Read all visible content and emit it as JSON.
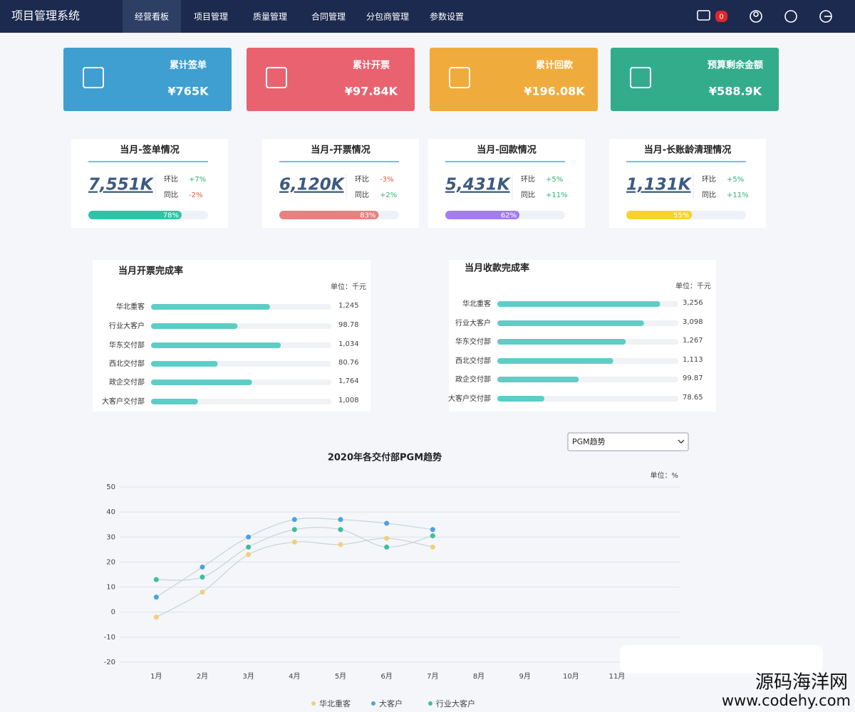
{
  "nav": {
    "title": "项目管理系统",
    "items": [
      "经营看板",
      "项目管理",
      "质量管理",
      "合同管理",
      "分包商管理",
      "参数设置"
    ],
    "badge": "0"
  },
  "kpis": [
    {
      "label": "累计签单",
      "value": "¥765K",
      "color": "#3f9fd0"
    },
    {
      "label": "累计开票",
      "value": "¥97.84K",
      "color": "#e8636f"
    },
    {
      "label": "累计回款",
      "value": "¥196.08K",
      "color": "#efac3c"
    },
    {
      "label": "预算剩余金额",
      "value": "¥588.9K",
      "color": "#33ac8c"
    }
  ],
  "months": [
    {
      "title": "当月-签单情况",
      "value": "7,551K",
      "mom_label": "环比",
      "mom": "+7%",
      "yoy_label": "同比",
      "yoy": "-2%",
      "progress": 78,
      "progress_label": "78%",
      "color": "#2ec4a6"
    },
    {
      "title": "当月-开票情况",
      "value": "6,120K",
      "mom_label": "环比",
      "mom": "-3%",
      "yoy_label": "同比",
      "yoy": "+2%",
      "progress": 83,
      "progress_label": "83%",
      "color": "#ea7f80"
    },
    {
      "title": "当月-回款情况",
      "value": "5,431K",
      "mom_label": "环比",
      "mom": "+5%",
      "yoy_label": "同比",
      "yoy": "+11%",
      "progress": 62,
      "progress_label": "62%",
      "color": "#a27cf0"
    },
    {
      "title": "当月-长账龄清理情况",
      "value": "1,131K",
      "mom_label": "环比",
      "mom": "+5%",
      "yoy_label": "同比",
      "yoy": "+11%",
      "progress": 55,
      "progress_label": "55%",
      "color": "#f9d22a"
    }
  ],
  "chart_data": [
    {
      "type": "bar",
      "orientation": "horizontal",
      "title": "当月开票完成率",
      "unit": "单位：千元",
      "categories": [
        "华北重客",
        "行业大客户",
        "华东交付部",
        "西北交付部",
        "政企交付部",
        "大客户交付部"
      ],
      "values": [
        66,
        48,
        72,
        37,
        56,
        26
      ],
      "amounts": [
        "1,245",
        "98.78",
        "1,034",
        "80.76",
        "1,764",
        "1,008"
      ],
      "xlim": [
        0,
        100
      ],
      "color": "#5ecdc6"
    },
    {
      "type": "bar",
      "orientation": "horizontal",
      "title": "当月收款完成率",
      "unit": "单位：千元",
      "categories": [
        "华北重客",
        "行业大客户",
        "华东交付部",
        "西北交付部",
        "政企交付部",
        "大客户交付部"
      ],
      "values": [
        90,
        81,
        71,
        64,
        45,
        26
      ],
      "amounts": [
        "3,256",
        "3,098",
        "1,267",
        "1,113",
        "99.87",
        "78.65"
      ],
      "xlim": [
        0,
        100
      ],
      "color": "#5ecdc6"
    },
    {
      "type": "line",
      "title": "2020年各交付部PGM趋势",
      "unit": "单位：%",
      "select": "PGM趋势",
      "categories": [
        "1月",
        "2月",
        "3月",
        "4月",
        "5月",
        "6月",
        "7月",
        "8月",
        "9月",
        "10月",
        "11月",
        null
      ],
      "series": [
        {
          "name": "华北重客",
          "color": "#f0cf78",
          "values": [
            -2,
            8,
            23,
            28,
            27,
            29.5,
            26,
            null,
            null,
            null,
            null,
            null
          ]
        },
        {
          "name": "大客户",
          "color": "#4aa3df",
          "values": [
            6,
            18,
            30,
            37,
            37,
            35.5,
            33,
            null,
            null,
            null,
            null,
            null
          ]
        },
        {
          "name": "行业大客户",
          "color": "#3dbf9a",
          "values": [
            13,
            14,
            26,
            33,
            33,
            26,
            30.5,
            null,
            null,
            null,
            null,
            null
          ]
        }
      ],
      "ylim": [
        -20,
        50
      ],
      "yticks": [
        -20,
        -10,
        0,
        10,
        20,
        30,
        40,
        50
      ],
      "grid": true,
      "legend": "bottom"
    }
  ],
  "watermark": {
    "name": "源码海洋网",
    "url": "www.codehy.com"
  }
}
